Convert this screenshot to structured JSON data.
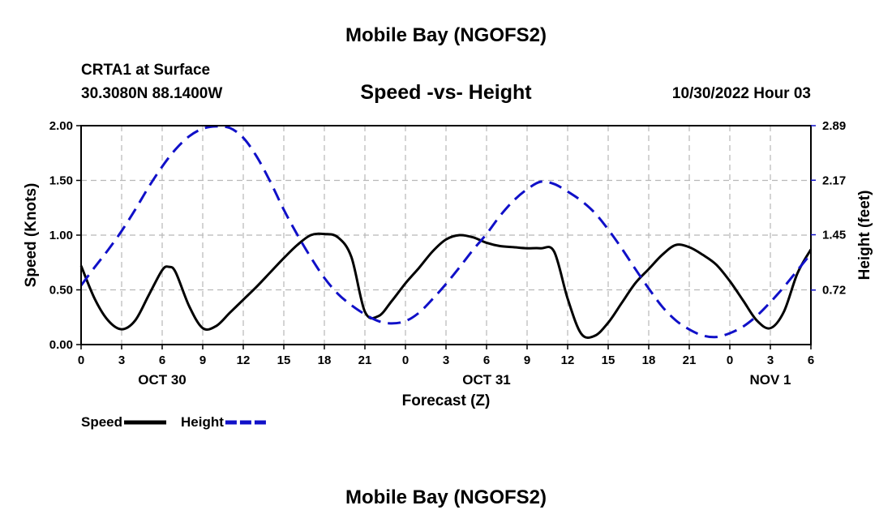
{
  "page": {
    "title": "Mobile Bay (NGOFS2)",
    "station": "CRTA1 at Surface",
    "coords": "30.3080N  88.1400W",
    "subtitle": "Speed -vs- Height",
    "datetime": "10/30/2022 Hour 03",
    "footer_title": "Mobile Bay (NGOFS2)"
  },
  "chart_data": {
    "type": "line",
    "title": "Speed -vs- Height",
    "xlabel": "Forecast (Z)",
    "ylabel": "Speed (Knots)",
    "y2label": "Height (feet)",
    "x_tick_labels": [
      "0",
      "3",
      "6",
      "9",
      "12",
      "15",
      "18",
      "21",
      "0",
      "3",
      "6",
      "9",
      "12",
      "15",
      "18",
      "21",
      "0",
      "3",
      "6"
    ],
    "date_labels": [
      {
        "label": "OCT 30",
        "at": 6
      },
      {
        "label": "OCT 31",
        "at": 30
      },
      {
        "label": "NOV 1",
        "at": 51
      }
    ],
    "xlim": [
      0,
      54
    ],
    "ylim": [
      0,
      2.0
    ],
    "y_ticks": [
      "0.00",
      "0.50",
      "1.00",
      "1.50",
      "2.00"
    ],
    "y2lim": [
      0,
      2.89
    ],
    "y2_ticks": [
      "0.72",
      "1.45",
      "2.17",
      "2.89"
    ],
    "grid": true,
    "legend_position": "bottom-left",
    "series": [
      {
        "name": "Speed",
        "color": "#000000",
        "style": "solid",
        "axis": "left",
        "x": [
          0,
          1,
          2,
          3,
          4,
          5,
          6,
          6.5,
          7,
          8,
          9,
          10,
          11,
          12,
          13,
          14,
          15,
          16,
          17,
          18,
          19,
          20,
          21,
          22,
          23,
          24,
          25,
          26,
          27,
          28,
          29,
          30,
          31,
          32,
          33,
          34,
          35,
          36,
          37,
          38,
          39,
          40,
          41,
          42,
          43,
          44,
          45,
          46,
          47,
          48,
          49,
          50,
          51,
          52,
          53,
          54
        ],
        "values": [
          0.72,
          0.42,
          0.22,
          0.14,
          0.22,
          0.45,
          0.68,
          0.71,
          0.66,
          0.35,
          0.15,
          0.17,
          0.29,
          0.41,
          0.53,
          0.66,
          0.79,
          0.91,
          1.0,
          1.01,
          0.98,
          0.8,
          0.3,
          0.26,
          0.4,
          0.56,
          0.7,
          0.85,
          0.96,
          1.0,
          0.98,
          0.93,
          0.9,
          0.89,
          0.88,
          0.88,
          0.85,
          0.42,
          0.1,
          0.08,
          0.2,
          0.38,
          0.56,
          0.69,
          0.82,
          0.91,
          0.89,
          0.82,
          0.73,
          0.58,
          0.4,
          0.22,
          0.15,
          0.3,
          0.65,
          0.87
        ]
      },
      {
        "name": "Height",
        "color": "#1010c8",
        "style": "dashed",
        "axis": "right",
        "x": [
          0,
          1,
          2,
          3,
          4,
          5,
          6,
          7,
          8,
          9,
          10,
          11,
          12,
          13,
          14,
          15,
          16,
          17,
          18,
          19,
          20,
          21,
          22,
          23,
          24,
          25,
          26,
          27,
          28,
          29,
          30,
          31,
          32,
          33,
          34,
          35,
          36,
          37,
          38,
          39,
          40,
          41,
          42,
          43,
          44,
          45,
          46,
          47,
          48,
          49,
          50,
          51,
          52,
          53,
          54
        ],
        "values": [
          0.78,
          1.02,
          1.25,
          1.5,
          1.78,
          2.08,
          2.35,
          2.58,
          2.75,
          2.85,
          2.88,
          2.86,
          2.73,
          2.48,
          2.15,
          1.78,
          1.45,
          1.15,
          0.88,
          0.67,
          0.52,
          0.4,
          0.31,
          0.28,
          0.31,
          0.42,
          0.6,
          0.8,
          1.02,
          1.25,
          1.46,
          1.7,
          1.9,
          2.05,
          2.15,
          2.12,
          2.02,
          1.9,
          1.74,
          1.52,
          1.27,
          1.0,
          0.74,
          0.5,
          0.32,
          0.2,
          0.12,
          0.1,
          0.15,
          0.24,
          0.38,
          0.56,
          0.76,
          0.98,
          1.2
        ]
      }
    ]
  }
}
